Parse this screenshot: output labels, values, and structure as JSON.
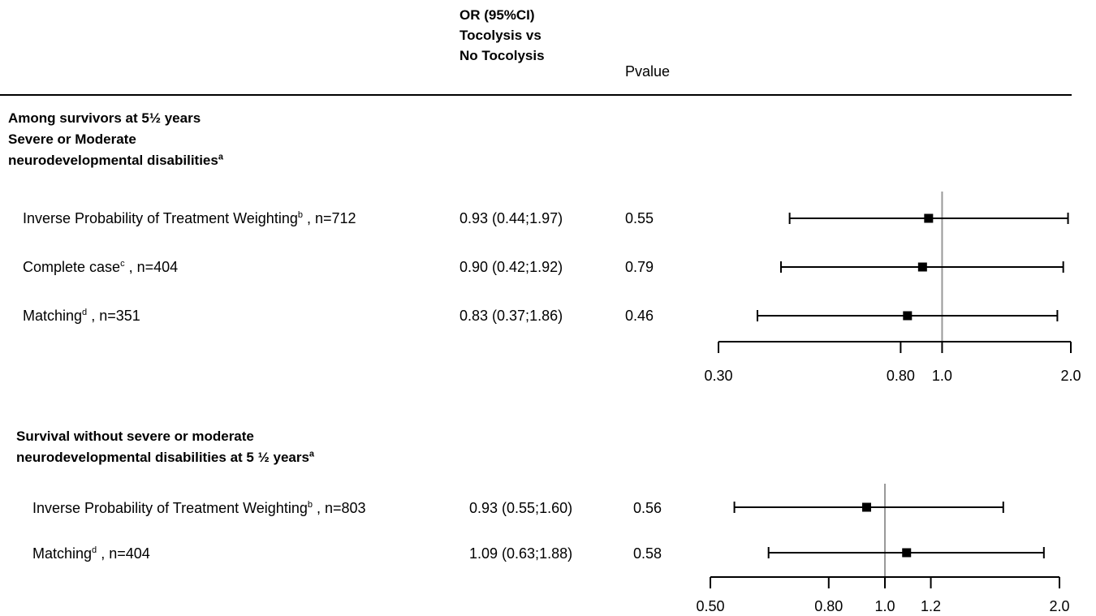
{
  "header": {
    "or_col": [
      "OR (95%CI)",
      "Tocolysis vs",
      "No Tocolysis"
    ],
    "pvalue_col": "Pvalue"
  },
  "section1": {
    "title_lines": [
      "Among survivors at 5½ years",
      "Severe or Moderate",
      "neurodevelopmental disabilities"
    ],
    "title_sup": "a",
    "rows": [
      {
        "label": "Inverse Probability of Treatment Weighting",
        "sup": "b",
        "n": ", n=712",
        "or_text": "0.93 (0.44;1.97)",
        "p": "0.55"
      },
      {
        "label": "Complete case",
        "sup": "c",
        "n": ", n=404",
        "or_text": "0.90 (0.42;1.92)",
        "p": "0.79"
      },
      {
        "label": "Matching",
        "sup": "d",
        "n": ", n=351",
        "or_text": "0.83 (0.37;1.86)",
        "p": "0.46"
      }
    ]
  },
  "section2": {
    "title_lines": [
      "Survival without severe or moderate",
      "neurodevelopmental disabilities at 5 ½ years"
    ],
    "title_sup": "a",
    "rows": [
      {
        "label": "Inverse Probability of Treatment Weighting",
        "sup": "b",
        "n": ", n=803",
        "or_text": "0.93 (0.55;1.60)",
        "p": "0.56"
      },
      {
        "label": "Matching",
        "sup": "d",
        "n": ", n=404",
        "or_text": "1.09 (0.63;1.88)",
        "p": "0.58"
      }
    ]
  },
  "chart_data": [
    {
      "type": "forest",
      "scale": "log",
      "xlim": [
        0.3,
        2.0
      ],
      "reference_line": 1.0,
      "ticks": [
        0.3,
        0.8,
        1.0,
        2.0
      ],
      "tick_labels": [
        "0.30",
        "0.80",
        "1.0",
        "2.0"
      ],
      "points": [
        {
          "or": 0.93,
          "lo": 0.44,
          "hi": 1.97
        },
        {
          "or": 0.9,
          "lo": 0.42,
          "hi": 1.92
        },
        {
          "or": 0.83,
          "lo": 0.37,
          "hi": 1.86
        }
      ]
    },
    {
      "type": "forest",
      "scale": "log",
      "xlim": [
        0.5,
        2.0
      ],
      "reference_line": 1.0,
      "ticks": [
        0.5,
        0.8,
        1.0,
        1.2,
        2.0
      ],
      "tick_labels": [
        "0.50",
        "0.80",
        "1.0",
        "1.2",
        "2.0"
      ],
      "points": [
        {
          "or": 0.93,
          "lo": 0.55,
          "hi": 1.6
        },
        {
          "or": 1.09,
          "lo": 0.63,
          "hi": 1.88
        }
      ]
    }
  ],
  "colors": {
    "reference_line": "#999999",
    "marks": "#000000"
  }
}
